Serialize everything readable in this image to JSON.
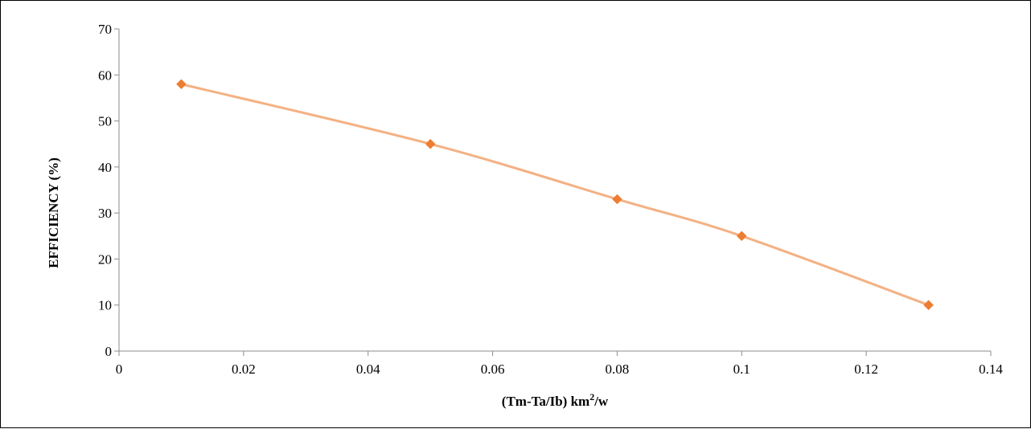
{
  "chart_data": {
    "type": "scatter",
    "title": "",
    "xlabel": "(Tm-Ta/Ib) km",
    "xlabel_sup": "2",
    "xlabel_suffix": "/w",
    "ylabel": "EFFICIENCY (%)",
    "xlim": [
      0,
      0.14
    ],
    "ylim": [
      0,
      70
    ],
    "xticks": [
      0,
      0.02,
      0.04,
      0.06,
      0.08,
      0.1,
      0.12,
      0.14
    ],
    "xtick_labels": [
      "0",
      "0.02",
      "0.04",
      "0.06",
      "0.08",
      "0.1",
      "0.12",
      "0.14"
    ],
    "yticks": [
      0,
      10,
      20,
      30,
      40,
      50,
      60,
      70
    ],
    "ytick_labels": [
      "0",
      "10",
      "20",
      "30",
      "40",
      "50",
      "60",
      "70"
    ],
    "grid": false,
    "legend": "none",
    "line_style": "smooth",
    "marker": "diamond",
    "series": [
      {
        "x": [
          0.01,
          0.05,
          0.08,
          0.1,
          0.13
        ],
        "y": [
          58,
          45,
          33,
          25,
          10
        ],
        "line_color": "#F4B183",
        "marker_color": "#ED7D31"
      }
    ]
  }
}
